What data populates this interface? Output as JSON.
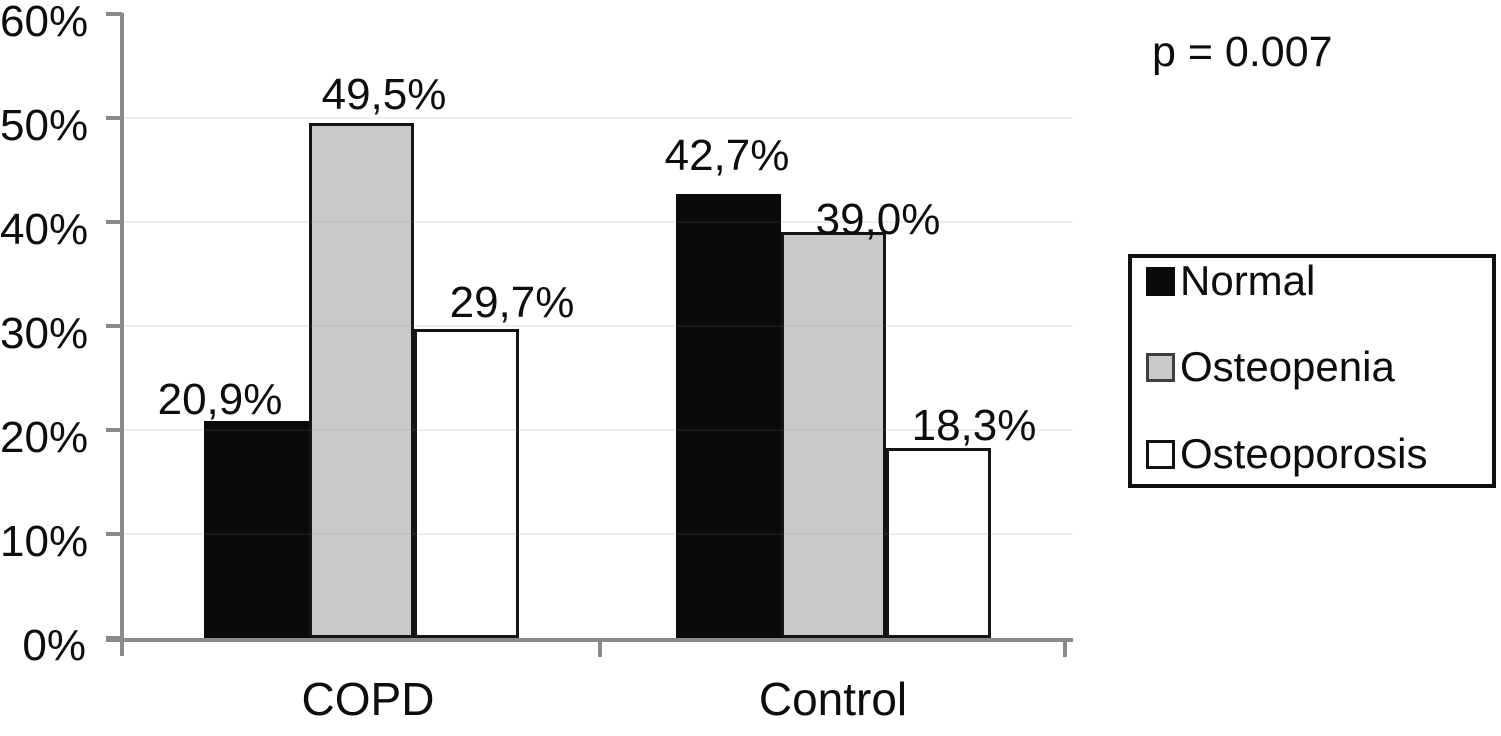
{
  "chart_data": {
    "type": "bar",
    "title": "",
    "categories": [
      "COPD",
      "Control"
    ],
    "series": [
      {
        "name": "Normal",
        "color": "#0a0a0a",
        "values": [
          20.9,
          42.7
        ],
        "labels": [
          "20,9%",
          "42,7%"
        ]
      },
      {
        "name": "Osteopenia",
        "color": "#c9c9c9",
        "values": [
          49.5,
          39.0
        ],
        "labels": [
          "49,5%",
          "39,0%"
        ]
      },
      {
        "name": "Osteoporosis",
        "color": "#ffffff",
        "values": [
          29.7,
          18.3
        ],
        "labels": [
          "29,7%",
          "18,3%"
        ]
      }
    ],
    "xlabel": "",
    "ylabel": "",
    "ylim": [
      0,
      60
    ],
    "ytick_labels": [
      "0%",
      "10%",
      "20%",
      "30%",
      "40%",
      "50%",
      "60%"
    ],
    "grid": "faint horizontal gridlines at 10% steps",
    "legend_position": "right",
    "annotation": "p = 0.007"
  },
  "legend": {
    "items": [
      {
        "label": "Normal"
      },
      {
        "label": "Osteopenia"
      },
      {
        "label": "Osteoporosis"
      }
    ]
  },
  "colors": {
    "bar_black": "#0a0a0a",
    "bar_gray": "#c9c9c9",
    "bar_white": "#ffffff",
    "bar_border": "#141414",
    "axis": "#8a8a8a",
    "text": "#0d0d0d"
  }
}
